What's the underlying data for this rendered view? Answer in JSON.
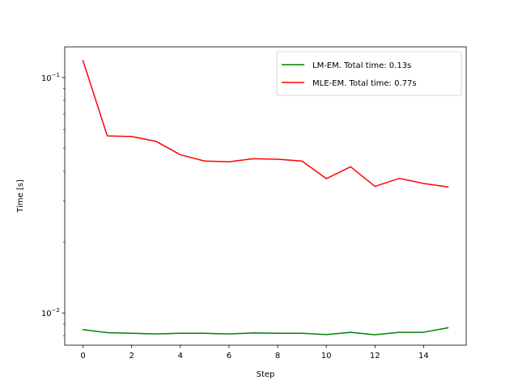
{
  "chart_data": {
    "type": "line",
    "title": "",
    "xlabel": "Step",
    "ylabel": "Time [s]",
    "yscale": "log",
    "xlim": [
      -0.75,
      15.75
    ],
    "ylim": [
      0.0073,
      0.135
    ],
    "x": [
      0,
      1,
      2,
      3,
      4,
      5,
      6,
      7,
      8,
      9,
      10,
      11,
      12,
      13,
      14,
      15
    ],
    "x_ticks": [
      0,
      2,
      4,
      6,
      8,
      10,
      12,
      14
    ],
    "x_tick_labels": [
      "0",
      "2",
      "4",
      "6",
      "8",
      "10",
      "12",
      "14"
    ],
    "y_major_ticks": [
      0.01,
      0.1
    ],
    "y_tick_labels": [
      "10^-2",
      "10^-1"
    ],
    "y_minor_ticks": [
      0.008,
      0.009,
      0.02,
      0.03,
      0.04,
      0.05,
      0.06,
      0.07,
      0.08,
      0.09
    ],
    "grid": false,
    "legend_position": "top-right",
    "series": [
      {
        "name": "LM-EM. Total time: 0.13s",
        "color": "#008000",
        "values": [
          0.0085,
          0.00825,
          0.0082,
          0.00815,
          0.0082,
          0.0082,
          0.00815,
          0.00823,
          0.0082,
          0.0082,
          0.0081,
          0.00828,
          0.00808,
          0.00828,
          0.00828,
          0.00865
        ]
      },
      {
        "name": "MLE-EM. Total time: 0.77s",
        "color": "#ff0000",
        "values": [
          0.118,
          0.0565,
          0.0562,
          0.0536,
          0.047,
          0.0442,
          0.0439,
          0.0452,
          0.045,
          0.0442,
          0.0372,
          0.0418,
          0.0345,
          0.0373,
          0.0355,
          0.0343
        ]
      }
    ]
  }
}
